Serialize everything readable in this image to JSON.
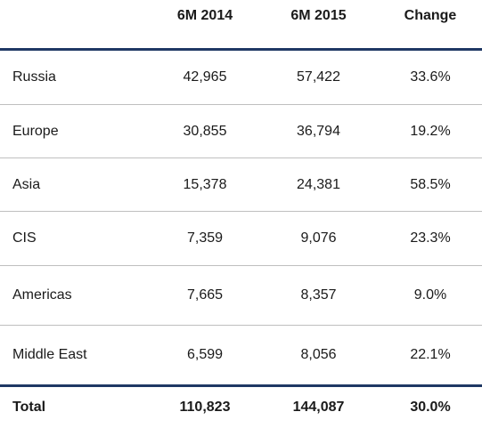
{
  "table": {
    "columns": [
      "",
      "6M 2014",
      "6M 2015",
      "Change"
    ],
    "rows": [
      {
        "region": "Russia",
        "y2014": "42,965",
        "y2015": "57,422",
        "change": "33.6%"
      },
      {
        "region": "Europe",
        "y2014": "30,855",
        "y2015": "36,794",
        "change": "19.2%"
      },
      {
        "region": "Asia",
        "y2014": "15,378",
        "y2015": "24,381",
        "change": "58.5%"
      },
      {
        "region": "CIS",
        "y2014": "7,359",
        "y2015": "9,076",
        "change": "23.3%"
      },
      {
        "region": "Americas",
        "y2014": "7,665",
        "y2015": "8,357",
        "change": "9.0%"
      },
      {
        "region": "Middle East",
        "y2014": "6,599",
        "y2015": "8,056",
        "change": "22.1%"
      }
    ],
    "total": {
      "region": "Total",
      "y2014": "110,823",
      "y2015": "144,087",
      "change": "30.0%"
    }
  },
  "colors": {
    "rule_dark": "#1f3864",
    "rule_light": "#bfbfbf"
  }
}
